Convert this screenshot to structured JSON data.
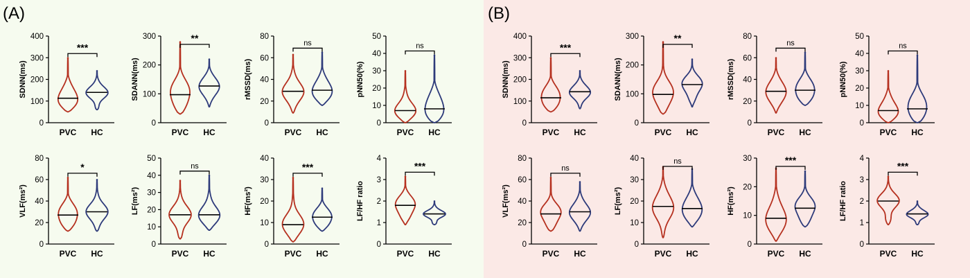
{
  "panels": [
    {
      "label": "(A)",
      "background": "#f6fbef"
    },
    {
      "label": "(B)",
      "background": "#fbe9e6"
    }
  ],
  "colors": {
    "pvc": "#b5301f",
    "hc": "#2d3a7a",
    "axis": "#000000"
  },
  "groups": [
    "PVC",
    "HC"
  ],
  "chart_data": [
    {
      "panel": "(A)",
      "type": "violin",
      "ylabel": "SDNN(ms)",
      "ylim": [
        0,
        400
      ],
      "yticks": [
        0,
        100,
        200,
        300,
        400
      ],
      "sig": "***",
      "categories": [
        "PVC",
        "HC"
      ],
      "series": [
        {
          "name": "PVC",
          "range": [
            50,
            300
          ],
          "median": 113
        },
        {
          "name": "HC",
          "range": [
            60,
            240
          ],
          "median": 140
        }
      ]
    },
    {
      "panel": "(A)",
      "type": "violin",
      "ylabel": "SDANN(ms)",
      "ylim": [
        0,
        300
      ],
      "yticks": [
        0,
        100,
        200,
        300
      ],
      "sig": "**",
      "categories": [
        "PVC",
        "HC"
      ],
      "series": [
        {
          "name": "PVC",
          "range": [
            30,
            280
          ],
          "median": 97
        },
        {
          "name": "HC",
          "range": [
            55,
            220
          ],
          "median": 127
        }
      ]
    },
    {
      "panel": "(A)",
      "type": "violin",
      "ylabel": "rMSSD(ms)",
      "ylim": [
        0,
        80
      ],
      "yticks": [
        0,
        20,
        40,
        60,
        80
      ],
      "sig": "ns",
      "categories": [
        "PVC",
        "HC"
      ],
      "series": [
        {
          "name": "PVC",
          "range": [
            9,
            63
          ],
          "median": 29
        },
        {
          "name": "HC",
          "range": [
            16,
            65
          ],
          "median": 30
        }
      ]
    },
    {
      "panel": "(A)",
      "type": "violin",
      "ylabel": "pNN50(%)",
      "ylim": [
        0,
        50
      ],
      "yticks": [
        0,
        10,
        20,
        30,
        40,
        50
      ],
      "sig": "ns",
      "categories": [
        "PVC",
        "HC"
      ],
      "series": [
        {
          "name": "PVC",
          "range": [
            0,
            30
          ],
          "median": 7
        },
        {
          "name": "HC",
          "range": [
            0,
            39
          ],
          "median": 8
        }
      ]
    },
    {
      "panel": "(A)",
      "type": "violin",
      "ylabel": "VLF(ms²)",
      "ylim": [
        0,
        80
      ],
      "yticks": [
        0,
        20,
        40,
        60,
        80
      ],
      "sig": "*",
      "categories": [
        "PVC",
        "HC"
      ],
      "series": [
        {
          "name": "PVC",
          "range": [
            12,
            62
          ],
          "median": 27
        },
        {
          "name": "HC",
          "range": [
            12,
            60
          ],
          "median": 30
        }
      ]
    },
    {
      "panel": "(A)",
      "type": "violin",
      "ylabel": "LF(ms²)",
      "ylim": [
        0,
        50
      ],
      "yticks": [
        0,
        10,
        20,
        30,
        40,
        50
      ],
      "sig": "ns",
      "categories": [
        "PVC",
        "HC"
      ],
      "series": [
        {
          "name": "PVC",
          "range": [
            3,
            37
          ],
          "median": 17
        },
        {
          "name": "HC",
          "range": [
            8,
            40
          ],
          "median": 17
        }
      ]
    },
    {
      "panel": "(A)",
      "type": "violin",
      "ylabel": "HF(ms²)",
      "ylim": [
        0,
        40
      ],
      "yticks": [
        0,
        10,
        20,
        30,
        40
      ],
      "sig": "***",
      "categories": [
        "PVC",
        "HC"
      ],
      "series": [
        {
          "name": "PVC",
          "range": [
            1,
            31
          ],
          "median": 9
        },
        {
          "name": "HC",
          "range": [
            6,
            26
          ],
          "median": 12.5
        }
      ]
    },
    {
      "panel": "(A)",
      "type": "violin",
      "ylabel": "LF/HF ratio",
      "ylim": [
        0,
        4
      ],
      "yticks": [
        0,
        1,
        2,
        3,
        4
      ],
      "sig": "***",
      "categories": [
        "PVC",
        "HC"
      ],
      "series": [
        {
          "name": "PVC",
          "range": [
            0.9,
            3.15
          ],
          "median": 1.8
        },
        {
          "name": "HC",
          "range": [
            0.9,
            2.0
          ],
          "median": 1.4
        }
      ]
    },
    {
      "panel": "(B)",
      "type": "violin",
      "ylabel": "SDNN(ms)",
      "ylim": [
        0,
        400
      ],
      "yticks": [
        0,
        100,
        200,
        300,
        400
      ],
      "sig": "***",
      "categories": [
        "PVC",
        "HC"
      ],
      "series": [
        {
          "name": "PVC",
          "range": [
            50,
            300
          ],
          "median": 115
        },
        {
          "name": "HC",
          "range": [
            65,
            240
          ],
          "median": 143
        }
      ]
    },
    {
      "panel": "(B)",
      "type": "violin",
      "ylabel": "SDANN(ms)",
      "ylim": [
        0,
        300
      ],
      "yticks": [
        0,
        100,
        200,
        300
      ],
      "sig": "**",
      "categories": [
        "PVC",
        "HC"
      ],
      "series": [
        {
          "name": "PVC",
          "range": [
            30,
            280
          ],
          "median": 98
        },
        {
          "name": "HC",
          "range": [
            55,
            220
          ],
          "median": 132
        }
      ]
    },
    {
      "panel": "(B)",
      "type": "violin",
      "ylabel": "rMSSD(ms)",
      "ylim": [
        0,
        80
      ],
      "yticks": [
        0,
        20,
        40,
        60,
        80
      ],
      "sig": "ns",
      "categories": [
        "PVC",
        "HC"
      ],
      "series": [
        {
          "name": "PVC",
          "range": [
            9,
            60
          ],
          "median": 29
        },
        {
          "name": "HC",
          "range": [
            16,
            65
          ],
          "median": 30
        }
      ]
    },
    {
      "panel": "(B)",
      "type": "violin",
      "ylabel": "pNN50(%)",
      "ylim": [
        0,
        50
      ],
      "yticks": [
        0,
        10,
        20,
        30,
        40,
        50
      ],
      "sig": "ns",
      "categories": [
        "PVC",
        "HC"
      ],
      "series": [
        {
          "name": "PVC",
          "range": [
            0,
            30
          ],
          "median": 7
        },
        {
          "name": "HC",
          "range": [
            0,
            39
          ],
          "median": 8
        }
      ]
    },
    {
      "panel": "(B)",
      "type": "violin",
      "ylabel": "VLF(ms²)",
      "ylim": [
        0,
        80
      ],
      "yticks": [
        0,
        20,
        40,
        60,
        80
      ],
      "sig": "ns",
      "categories": [
        "PVC",
        "HC"
      ],
      "series": [
        {
          "name": "PVC",
          "range": [
            12,
            62
          ],
          "median": 28
        },
        {
          "name": "HC",
          "range": [
            12,
            58
          ],
          "median": 30
        }
      ]
    },
    {
      "panel": "(B)",
      "type": "violin",
      "ylabel": "LF(ms²)",
      "ylim": [
        0,
        40
      ],
      "yticks": [
        0,
        10,
        20,
        30,
        40
      ],
      "sig": "ns",
      "categories": [
        "PVC",
        "HC"
      ],
      "series": [
        {
          "name": "PVC",
          "range": [
            3,
            36
          ],
          "median": 17.5
        },
        {
          "name": "HC",
          "range": [
            8,
            35
          ],
          "median": 16.5
        }
      ]
    },
    {
      "panel": "(B)",
      "type": "violin",
      "ylabel": "HF(ms²)",
      "ylim": [
        0,
        30
      ],
      "yticks": [
        0,
        10,
        20,
        30
      ],
      "sig": "***",
      "categories": [
        "PVC",
        "HC"
      ],
      "series": [
        {
          "name": "PVC",
          "range": [
            1,
            26.5
          ],
          "median": 9
        },
        {
          "name": "HC",
          "range": [
            6,
            25.5
          ],
          "median": 12.5
        }
      ]
    },
    {
      "panel": "(B)",
      "type": "violin",
      "ylabel": "LF/HF ratio",
      "ylim": [
        0,
        4
      ],
      "yticks": [
        0,
        1,
        2,
        3,
        4
      ],
      "sig": "***",
      "categories": [
        "PVC",
        "HC"
      ],
      "series": [
        {
          "name": "PVC",
          "range": [
            0.9,
            3.15
          ],
          "median": 2.0
        },
        {
          "name": "HC",
          "range": [
            0.9,
            2.0
          ],
          "median": 1.4
        }
      ]
    }
  ]
}
